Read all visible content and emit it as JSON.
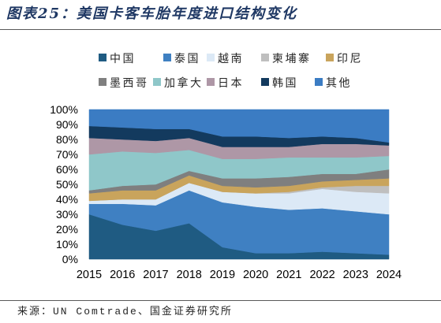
{
  "source": "来源：UN Comtrade、国金证券研究所",
  "chart_data": {
    "type": "area",
    "stacked": true,
    "title": "图表25：美国卡客车胎年度进口结构变化",
    "x": [
      2015,
      2016,
      2017,
      2018,
      2019,
      2020,
      2021,
      2022,
      2023,
      2024
    ],
    "ylim": [
      0,
      100
    ],
    "y_tick_labels": [
      "0%",
      "10%",
      "20%",
      "30%",
      "40%",
      "50%",
      "60%",
      "70%",
      "80%",
      "90%",
      "100%"
    ],
    "grid": false,
    "legend": "top",
    "series": [
      {
        "name": "中国",
        "color": "#1f5b82",
        "values": [
          30,
          23,
          19,
          24,
          8,
          4,
          4,
          5,
          4,
          3
        ]
      },
      {
        "name": "泰国",
        "color": "#3f80c2",
        "values": [
          7,
          14,
          17,
          22,
          30,
          31,
          29,
          29,
          28,
          27
        ]
      },
      {
        "name": "越南",
        "color": "#dce9f6",
        "values": [
          2,
          3,
          4,
          5,
          7,
          9,
          11,
          13,
          13,
          14
        ]
      },
      {
        "name": "柬埔寨",
        "color": "#bfbfbf",
        "values": [
          0,
          0,
          0,
          0,
          0,
          0,
          1,
          1,
          4,
          5
        ]
      },
      {
        "name": "印尼",
        "color": "#c9a45c",
        "values": [
          5,
          6,
          6,
          5,
          4,
          4,
          4,
          4,
          4,
          5
        ]
      },
      {
        "name": "墨西哥",
        "color": "#7f7f7f",
        "values": [
          2,
          3,
          4,
          3,
          5,
          6,
          6,
          5,
          4,
          6
        ]
      },
      {
        "name": "加拿大",
        "color": "#8fc7c9",
        "values": [
          24,
          23,
          21,
          14,
          13,
          13,
          13,
          11,
          11,
          9
        ]
      },
      {
        "name": "日本",
        "color": "#ae97a6",
        "values": [
          11,
          8,
          8,
          8,
          8,
          8,
          7,
          9,
          9,
          7
        ]
      },
      {
        "name": "韩国",
        "color": "#133a5e",
        "values": [
          8,
          8,
          8,
          6,
          7,
          7,
          6,
          5,
          4,
          2
        ]
      },
      {
        "name": "其他",
        "color": "#3b7cc3",
        "values": [
          11,
          12,
          13,
          13,
          18,
          18,
          19,
          18,
          19,
          22
        ]
      }
    ]
  }
}
